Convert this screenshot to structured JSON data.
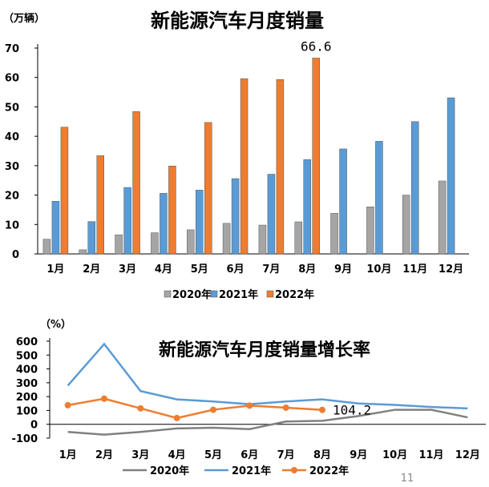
{
  "page_number": "11",
  "chart_data": [
    {
      "type": "bar",
      "title": "新能源汽车月度销量",
      "unit_label": "（万辆）",
      "categories": [
        "1月",
        "2月",
        "3月",
        "4月",
        "5月",
        "6月",
        "7月",
        "8月",
        "9月",
        "10月",
        "11月",
        "12月"
      ],
      "ylim": [
        0,
        70
      ],
      "yticks": [
        "0",
        "10",
        "20",
        "30",
        "40",
        "50",
        "60",
        "70"
      ],
      "legend_position": "bottom",
      "grid": false,
      "series": [
        {
          "name": "2020年",
          "color": "#a5a5a5",
          "values": [
            5.0,
            1.4,
            6.5,
            7.2,
            8.2,
            10.4,
            9.8,
            10.9,
            13.8,
            16.0,
            20.0,
            24.8
          ]
        },
        {
          "name": "2021年",
          "color": "#5b9bd5",
          "values": [
            17.9,
            11.0,
            22.6,
            20.6,
            21.7,
            25.6,
            27.1,
            32.1,
            35.7,
            38.3,
            45.0,
            53.1
          ]
        },
        {
          "name": "2022年",
          "color": "#ed7d31",
          "values": [
            43.1,
            33.4,
            48.4,
            29.9,
            44.7,
            59.6,
            59.3,
            66.6,
            null,
            null,
            null,
            null
          ]
        }
      ],
      "annotation": {
        "text": "66.6",
        "category": "8月"
      }
    },
    {
      "type": "line",
      "title": "新能源汽车月度销量增长率",
      "unit_label": "（%）",
      "categories": [
        "1月",
        "2月",
        "3月",
        "4月",
        "5月",
        "6月",
        "7月",
        "8月",
        "9月",
        "10月",
        "11月",
        "12月"
      ],
      "ylim": [
        -100,
        600
      ],
      "yticks": [
        "-100",
        "0",
        "100",
        "200",
        "300",
        "400",
        "500",
        "600"
      ],
      "legend_position": "bottom",
      "grid": false,
      "series": [
        {
          "name": "2020年",
          "color": "#808080",
          "markers": false,
          "values": [
            -55,
            -75,
            -55,
            -30,
            -25,
            -35,
            20,
            25,
            60,
            105,
            105,
            50
          ]
        },
        {
          "name": "2021年",
          "color": "#5b9bd5",
          "markers": false,
          "values": [
            280,
            580,
            240,
            180,
            165,
            145,
            165,
            180,
            150,
            140,
            125,
            115
          ]
        },
        {
          "name": "2022年",
          "color": "#ed7d31",
          "markers": true,
          "values": [
            138,
            185,
            115,
            45,
            105,
            135,
            120,
            104.2,
            null,
            null,
            null,
            null
          ]
        }
      ],
      "annotation": {
        "text": "104.2",
        "category": "8月"
      }
    }
  ]
}
